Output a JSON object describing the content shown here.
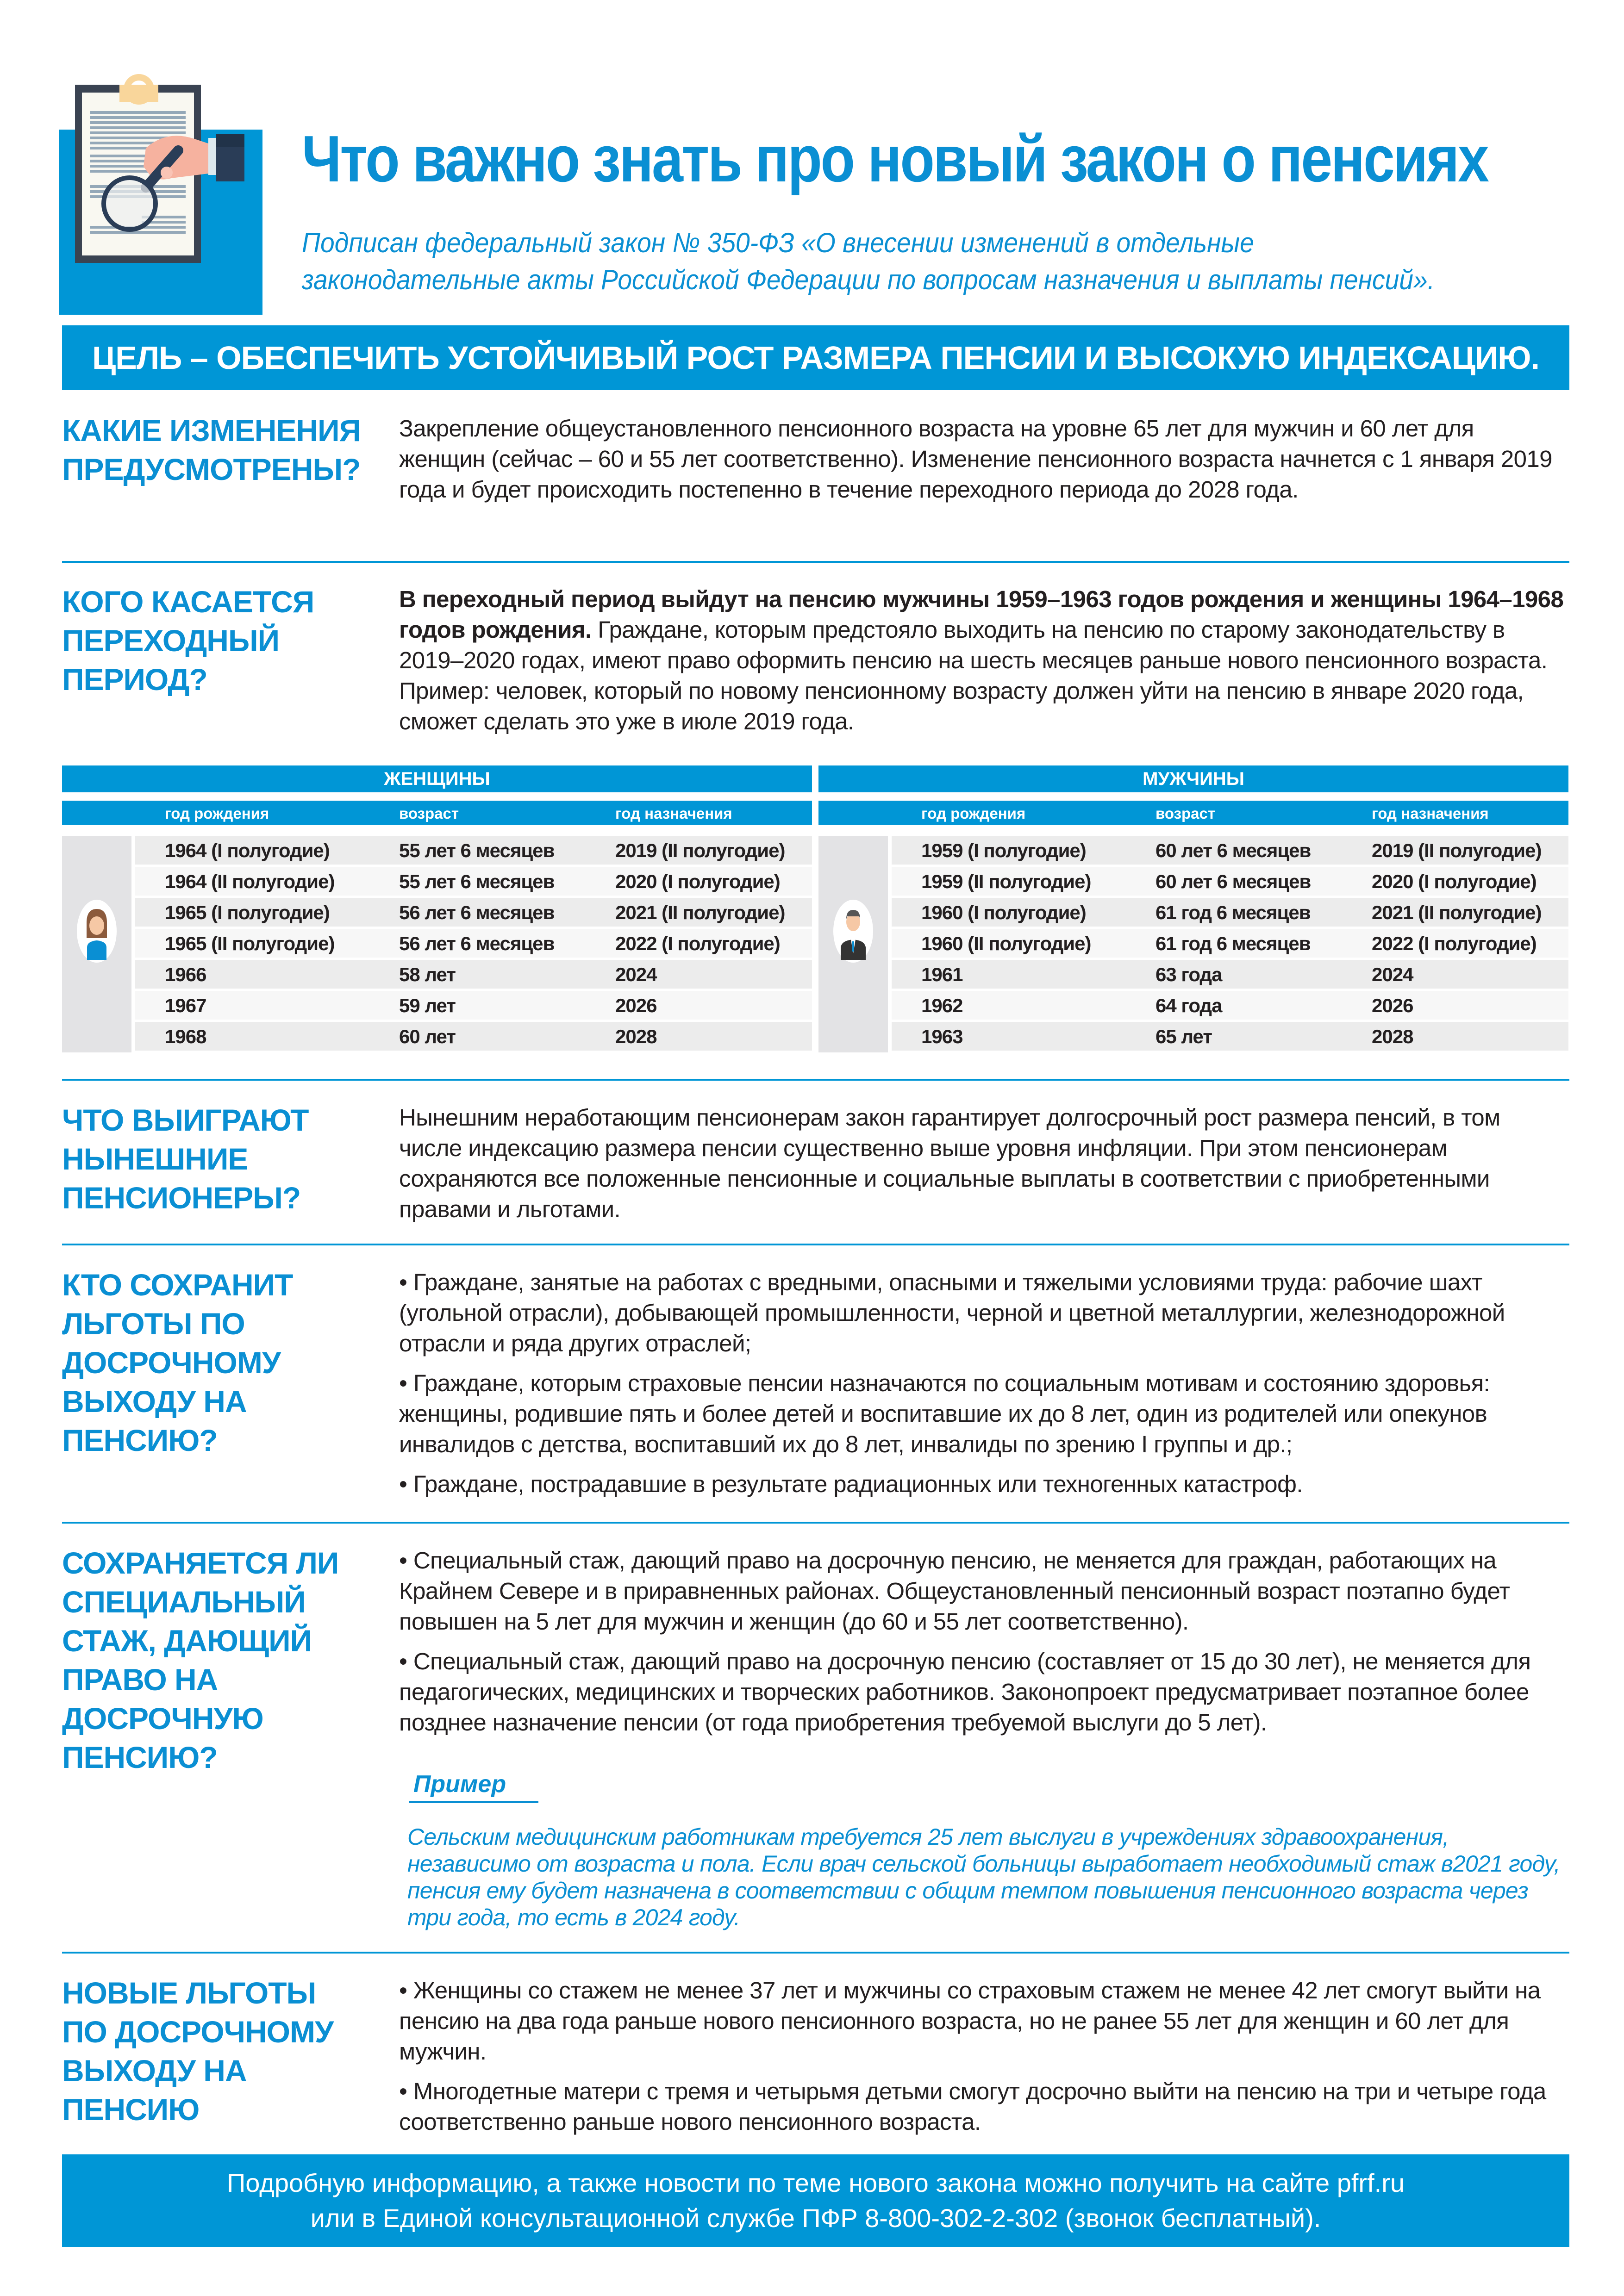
{
  "header": {
    "title": "Что важно знать про новый закон о пенсиях",
    "subtitle_line1": "Подписан федеральный закон № 350-ФЗ «О внесении изменений в отдельные",
    "subtitle_line2": "законодательные акты Российской Федерации по вопросам назначения и выплаты пенсий».",
    "logo_icon": "clipboard-magnifier-icon"
  },
  "banner": "ЦЕЛЬ – ОБЕСПЕЧИТЬ УСТОЙЧИВЫЙ РОСТ РАЗМЕРА ПЕНСИИ И ВЫСОКУЮ ИНДЕКСАЦИЮ.",
  "sections": [
    {
      "heading": "Какие изменения предусмотрены?",
      "paragraphs": [
        "Закрепление общеустановленного пенсионного возраста на уровне 65 лет для мужчин и 60 лет для женщин (сейчас – 60 и 55 лет соответственно). Изменение пенсионного возраста начнется с 1 января 2019 года и будет происходить постепенно в течение переходного периода до 2028 года."
      ]
    },
    {
      "heading": "Кого касается переходный период?",
      "bold_lead": "В переходный период выйдут на пенсию мужчины 1959–1963 годов рождения и женщины 1964–1968 годов рождения.",
      "paragraphs": [
        " Граждане, которым предстояло выходить на пенсию по старому законодательству в 2019–2020 годах, имеют право оформить пенсию на шесть месяцев раньше нового пенсионного возраста. Пример: человек, который по новому пенсионному возрасту должен уйти на пенсию в январе 2020 года, сможет сделать это уже в июле 2019 года."
      ]
    },
    {
      "heading": "Что выиграют нынешние пенсионеры?",
      "paragraphs": [
        "Нынешним неработающим пенсионерам закон гарантирует долгосрочный рост размера пенсий, в том числе индексацию размера пенсии существенно выше уровня инфляции. При этом пенсионерам сохраняются все положенные пенсионные и социальные выплаты в соответствии с приобретенными правами и льготами."
      ]
    },
    {
      "heading": "Кто сохранит льготы по досрочному выходу на пенсию?",
      "paragraphs": [
        "• Граждане, занятые на работах с вредными, опасными и тяжелыми условиями труда: рабочие шахт (угольной отрасли), добывающей промышленности, черной и цветной металлургии, железнодорожной отрасли и ряда других отраслей;",
        "• Граждане, которым страховые пенсии назначаются по социальным мотивам и состоянию здоровья: женщины, родившие пять и более детей и воспитавшие их до 8 лет, один из родителей или опекунов инвалидов с детства, воспитавший их до 8 лет, инвалиды по зрению I группы и др.;",
        "• Граждане, пострадавшие в результате радиационных или техногенных катастроф."
      ]
    },
    {
      "heading": "Сохраняется ли специальный стаж, дающий право на досрочную пенсию?",
      "paragraphs": [
        "• Специальный стаж, дающий право на досрочную пенсию, не меняется для граждан, работающих на Крайнем Севере и в приравненных районах. Общеустановленный пенсионный возраст поэтапно будет повышен на 5 лет для мужчин и женщин (до 60 и 55 лет соответственно).",
        "• Специальный стаж, дающий право на досрочную пенсию (составляет от 15 до 30 лет), не меняется для педагогических, медицинских и творческих работников. Законопроект предусматривает поэтапное более позднее назначение пенсии (от года приобретения требуемой выслуги до 5 лет)."
      ],
      "example_label": "Пример",
      "example_text": "Сельским медицинским работникам требуется 25 лет выслуги в учреждениях здравоохранения, независимо от возраста и пола. Если врач сельской больницы выработает необходимый стаж в2021 году, пенсия ему будет назначена в соответствии с общим темпом повышения пенсионного возраста через три года, то есть в 2024 году."
    },
    {
      "heading": "Новые льготы по досрочному выходу на пенсию",
      "paragraphs": [
        "• Женщины со стажем не менее 37 лет и мужчины со страховым стажем не менее 42 лет смогут выйти на пенсию на два года раньше нового пенсионного возраста, но не ранее 55 лет для женщин и 60 лет для мужчин.",
        "• Многодетные матери с тремя и четырьмя детьми смогут досрочно выйти на пенсию на три и четыре года соответственно раньше нового пенсионного возраста."
      ]
    }
  ],
  "tables": {
    "columns": [
      "год рождения",
      "возраст",
      "год назначения"
    ],
    "women": {
      "title": "ЖЕНЩИНЫ",
      "icon": "woman-avatar-icon",
      "rows": [
        [
          "1964 (I полугодие)",
          "55 лет 6 месяцев",
          "2019 (II полугодие)"
        ],
        [
          "1964 (II полугодие)",
          "55 лет 6 месяцев",
          "2020 (I полугодие)"
        ],
        [
          "1965 (I полугодие)",
          "56 лет 6 месяцев",
          "2021 (II полугодие)"
        ],
        [
          "1965 (II полугодие)",
          "56 лет 6 месяцев",
          "2022 (I полугодие)"
        ],
        [
          "1966",
          "58 лет",
          "2024"
        ],
        [
          "1967",
          "59 лет",
          "2026"
        ],
        [
          "1968",
          "60 лет",
          "2028"
        ]
      ]
    },
    "men": {
      "title": "МУЖЧИНЫ",
      "icon": "man-avatar-icon",
      "rows": [
        [
          "1959 (I полугодие)",
          "60 лет 6 месяцев",
          "2019 (II полугодие)"
        ],
        [
          "1959 (II полугодие)",
          "60 лет 6 месяцев",
          "2020 (I полугодие)"
        ],
        [
          "1960 (I полугодие)",
          "61 год 6 месяцев",
          "2021 (II полугодие)"
        ],
        [
          "1960 (II полугодие)",
          "61 год 6 месяцев",
          "2022 (I полугодие)"
        ],
        [
          "1961",
          "63 года",
          "2024"
        ],
        [
          "1962",
          "64 года",
          "2026"
        ],
        [
          "1963",
          "65 лет",
          "2028"
        ]
      ]
    }
  },
  "footer": {
    "line1": "Подробную информацию, а также новости по теме нового закона можно получить на сайте pfrf.ru",
    "line2": "или в Единой консультационной службе ПФР 8-800-302-2-302 (звонок бесплатный)."
  },
  "colors": {
    "brand_blue": "#0096d6",
    "heading_blue": "#0a8fd3",
    "row_gray": "#ececec"
  }
}
